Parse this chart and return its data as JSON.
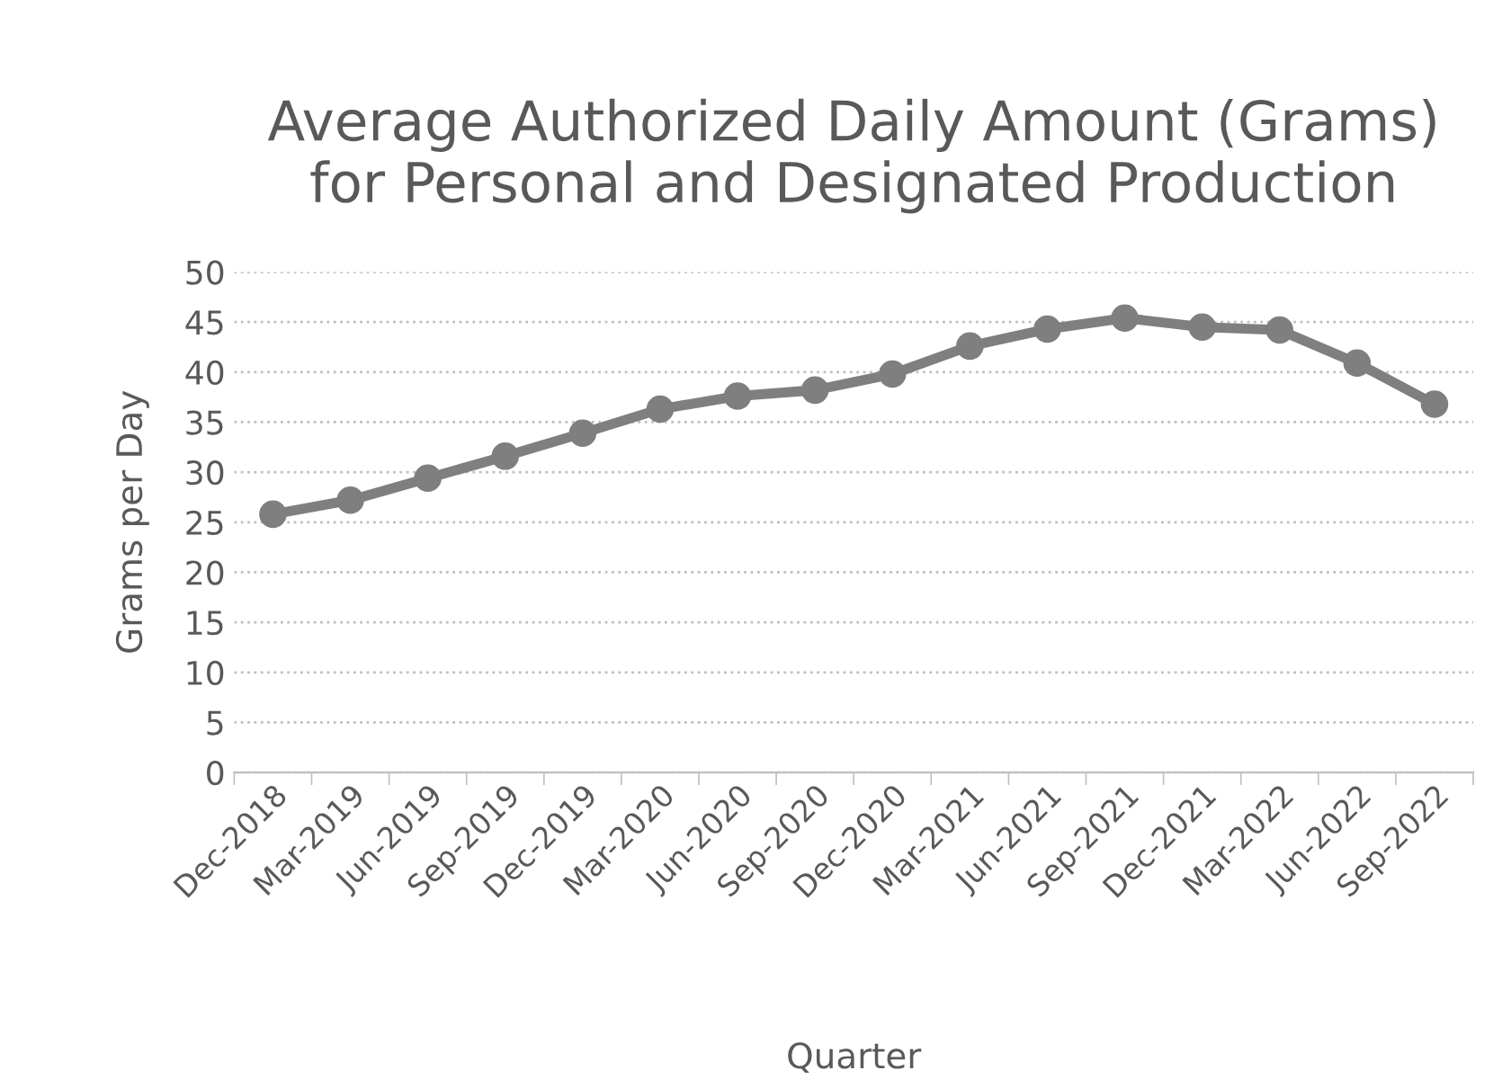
{
  "chart_data": {
    "type": "line",
    "title": "Average Authorized Daily Amount (Grams)\nfor Personal and Designated Production",
    "xlabel": "Quarter",
    "ylabel": "Grams per Day",
    "categories": [
      "Dec-2018",
      "Mar-2019",
      "Jun-2019",
      "Sep-2019",
      "Dec-2019",
      "Mar-2020",
      "Jun-2020",
      "Sep-2020",
      "Dec-2020",
      "Mar-2021",
      "Jun-2021",
      "Sep-2021",
      "Dec-2021",
      "Mar-2022",
      "Jun-2022",
      "Sep-2022"
    ],
    "series": [
      {
        "color": "#7f7f7f",
        "values": [
          25.8,
          27.2,
          29.4,
          31.6,
          33.9,
          36.3,
          37.6,
          38.2,
          39.8,
          42.6,
          44.3,
          45.4,
          44.5,
          44.2,
          40.9,
          36.8
        ]
      }
    ],
    "ylim": [
      0,
      50
    ],
    "yticks": [
      0,
      5,
      10,
      15,
      20,
      25,
      30,
      35,
      40,
      45,
      50
    ],
    "grid": "y",
    "marker": "circle",
    "line_style": "solid",
    "legend": false
  }
}
